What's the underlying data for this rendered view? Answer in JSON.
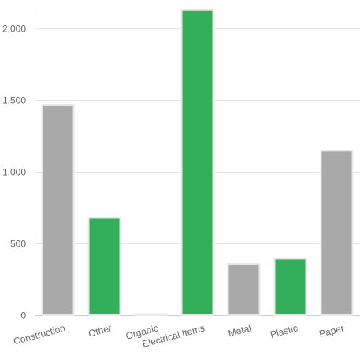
{
  "chart_data": {
    "type": "bar",
    "categories": [
      "Construction",
      "Other",
      "Organic",
      "Electrical Items",
      "Metal",
      "Plastic",
      "Paper"
    ],
    "values": [
      1465,
      678,
      8,
      2125,
      357,
      393,
      1145
    ],
    "bar_colors": [
      "#a9a9a9",
      "#33af5b",
      "#a9a9a9",
      "#33af5b",
      "#a9a9a9",
      "#33af5b",
      "#a9a9a9"
    ],
    "y_ticks": [
      {
        "value": 0,
        "label": "0"
      },
      {
        "value": 500,
        "label": "500"
      },
      {
        "value": 1000,
        "label": "1,000"
      },
      {
        "value": 1500,
        "label": "1,500"
      },
      {
        "value": 2000,
        "label": "2,000"
      }
    ],
    "ylim": [
      0,
      2140
    ],
    "grid": true,
    "legend": "none"
  }
}
